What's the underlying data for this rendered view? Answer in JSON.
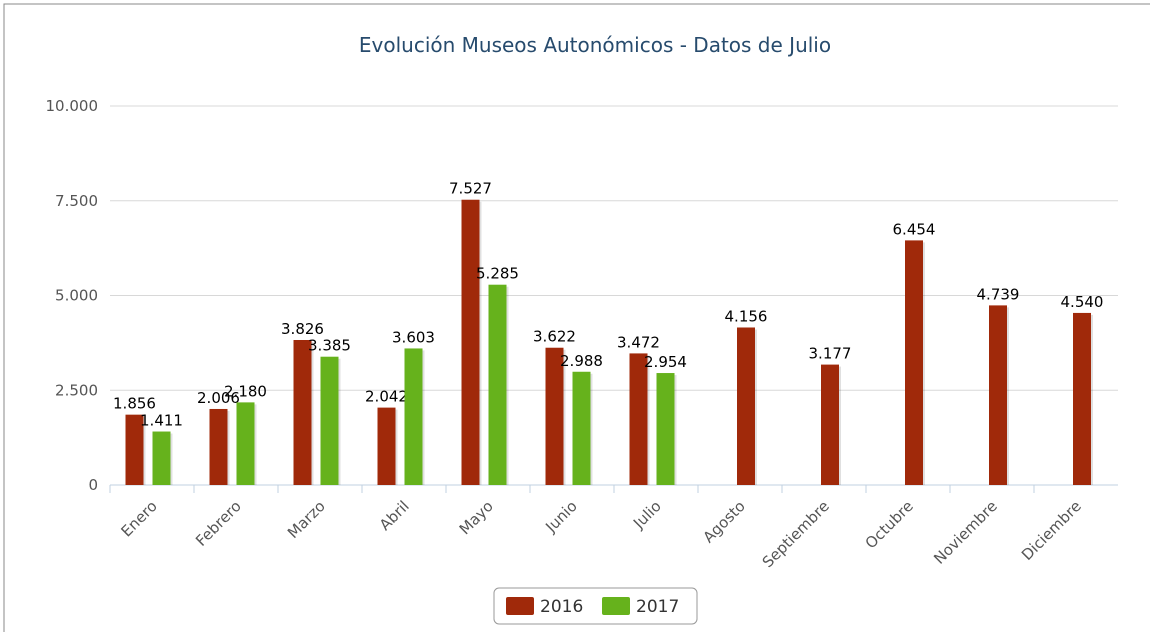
{
  "chart_data": {
    "type": "bar",
    "title": "Evolución Museos Autonómicos - Datos de Julio",
    "categories": [
      "Enero",
      "Febrero",
      "Marzo",
      "Abril",
      "Mayo",
      "Junio",
      "Julio",
      "Agosto",
      "Septiembre",
      "Octubre",
      "Noviembre",
      "Diciembre"
    ],
    "series": [
      {
        "name": "2016",
        "color": "#a0290a",
        "values": [
          1856,
          2006,
          3826,
          2042,
          7527,
          3622,
          3472,
          4156,
          3177,
          6454,
          4739,
          4540
        ],
        "value_labels": [
          "1.856",
          "2.006",
          "3.826",
          "2.042",
          "7.527",
          "3.622",
          "3.472",
          "4.156",
          "3.177",
          "6.454",
          "4.739",
          "4.540"
        ]
      },
      {
        "name": "2017",
        "color": "#66b21c",
        "values": [
          1411,
          2180,
          3385,
          3603,
          5285,
          2988,
          2954,
          null,
          null,
          null,
          null,
          null
        ],
        "value_labels": [
          "1.411",
          "2.180",
          "3.385",
          "3.603",
          "5.285",
          "2.988",
          "2.954",
          null,
          null,
          null,
          null,
          null
        ]
      }
    ],
    "ylim": [
      0,
      10000
    ],
    "yticks": [
      0,
      {
        "value": 2500,
        "label": "2.500"
      },
      {
        "value": 5000,
        "label": "5.000"
      },
      {
        "value": 7500,
        "label": "7.500"
      },
      {
        "value": 10000,
        "label": "10.000"
      }
    ],
    "grid": true,
    "legend": "bottom"
  }
}
